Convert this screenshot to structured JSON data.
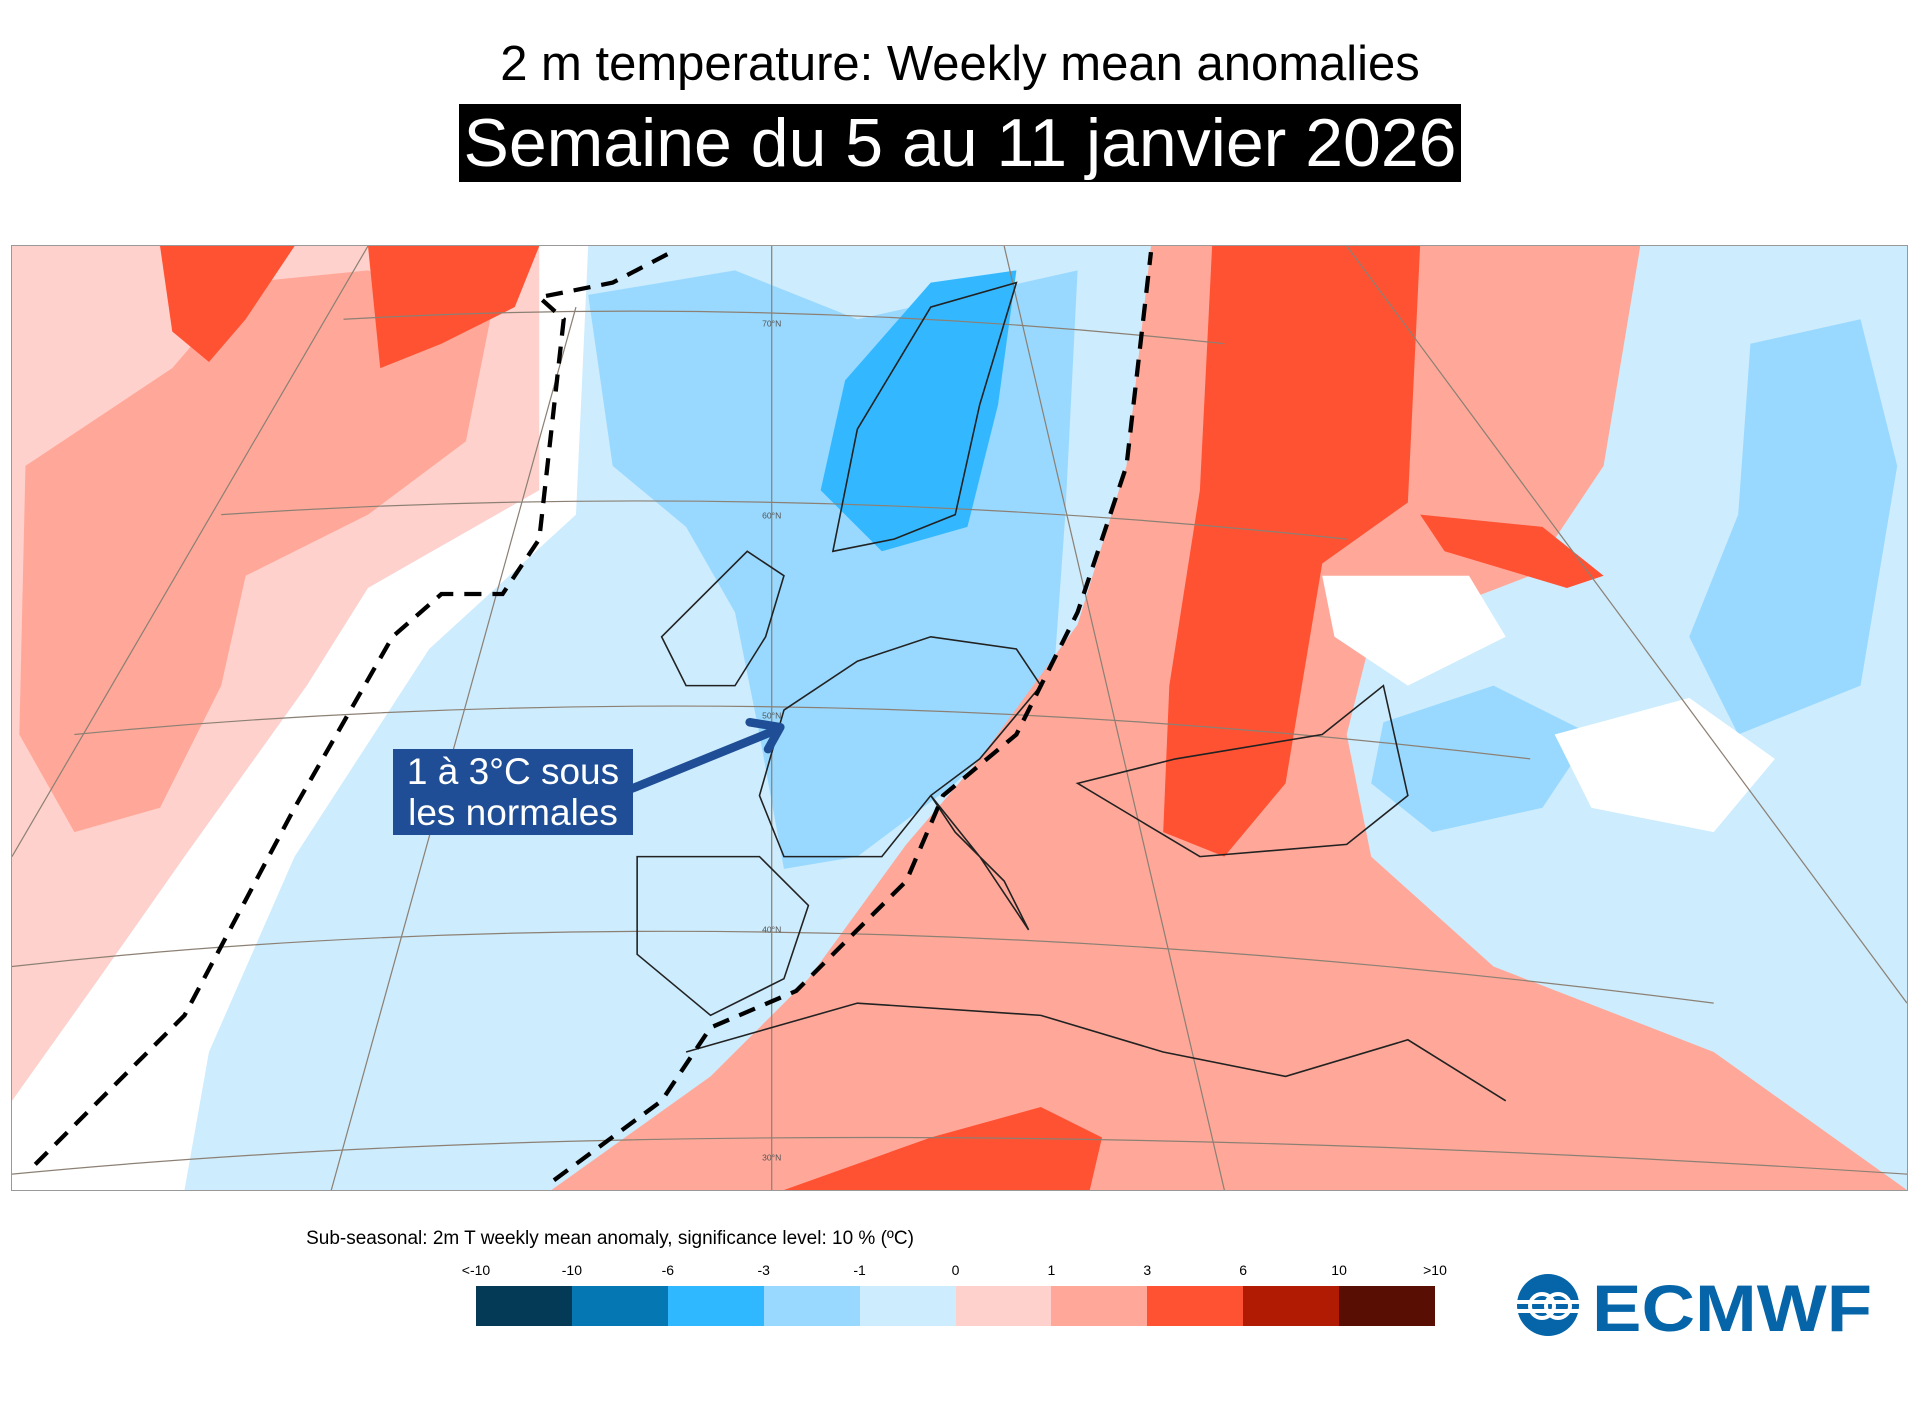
{
  "title": "2 m temperature: Weekly mean anomalies",
  "subtitle": "Semaine du 5 au 11 janvier 2026",
  "annotation": {
    "line1": "1 à 3°C sous",
    "line2": "les normales",
    "color": "#1f4e96"
  },
  "map": {
    "lat_labels": [
      "70°N",
      "60°N",
      "50°N",
      "40°N",
      "30°N"
    ],
    "colors": {
      "light_pink": "#ffd1cc",
      "salmon": "#ffa899",
      "red": "#ff5233",
      "light_blue": "#cdecfd",
      "mid_blue": "#99d9ff",
      "blue": "#33b8ff"
    }
  },
  "legend": {
    "title": "Sub-seasonal: 2m T weekly mean anomaly, significance level: 10 % (ºC)",
    "ticks": [
      "<-10",
      "-10",
      "-6",
      "-3",
      "-1",
      "0",
      "1",
      "3",
      "6",
      "10",
      ">10"
    ],
    "colors": [
      "#053a56",
      "#0577b3",
      "#2fb7ff",
      "#99d9ff",
      "#cdecfd",
      "#ffd1cc",
      "#ffa899",
      "#ff5233",
      "#b21b03",
      "#590e04"
    ]
  },
  "logo": {
    "text": "ECMWF",
    "color": "#0565a8"
  }
}
